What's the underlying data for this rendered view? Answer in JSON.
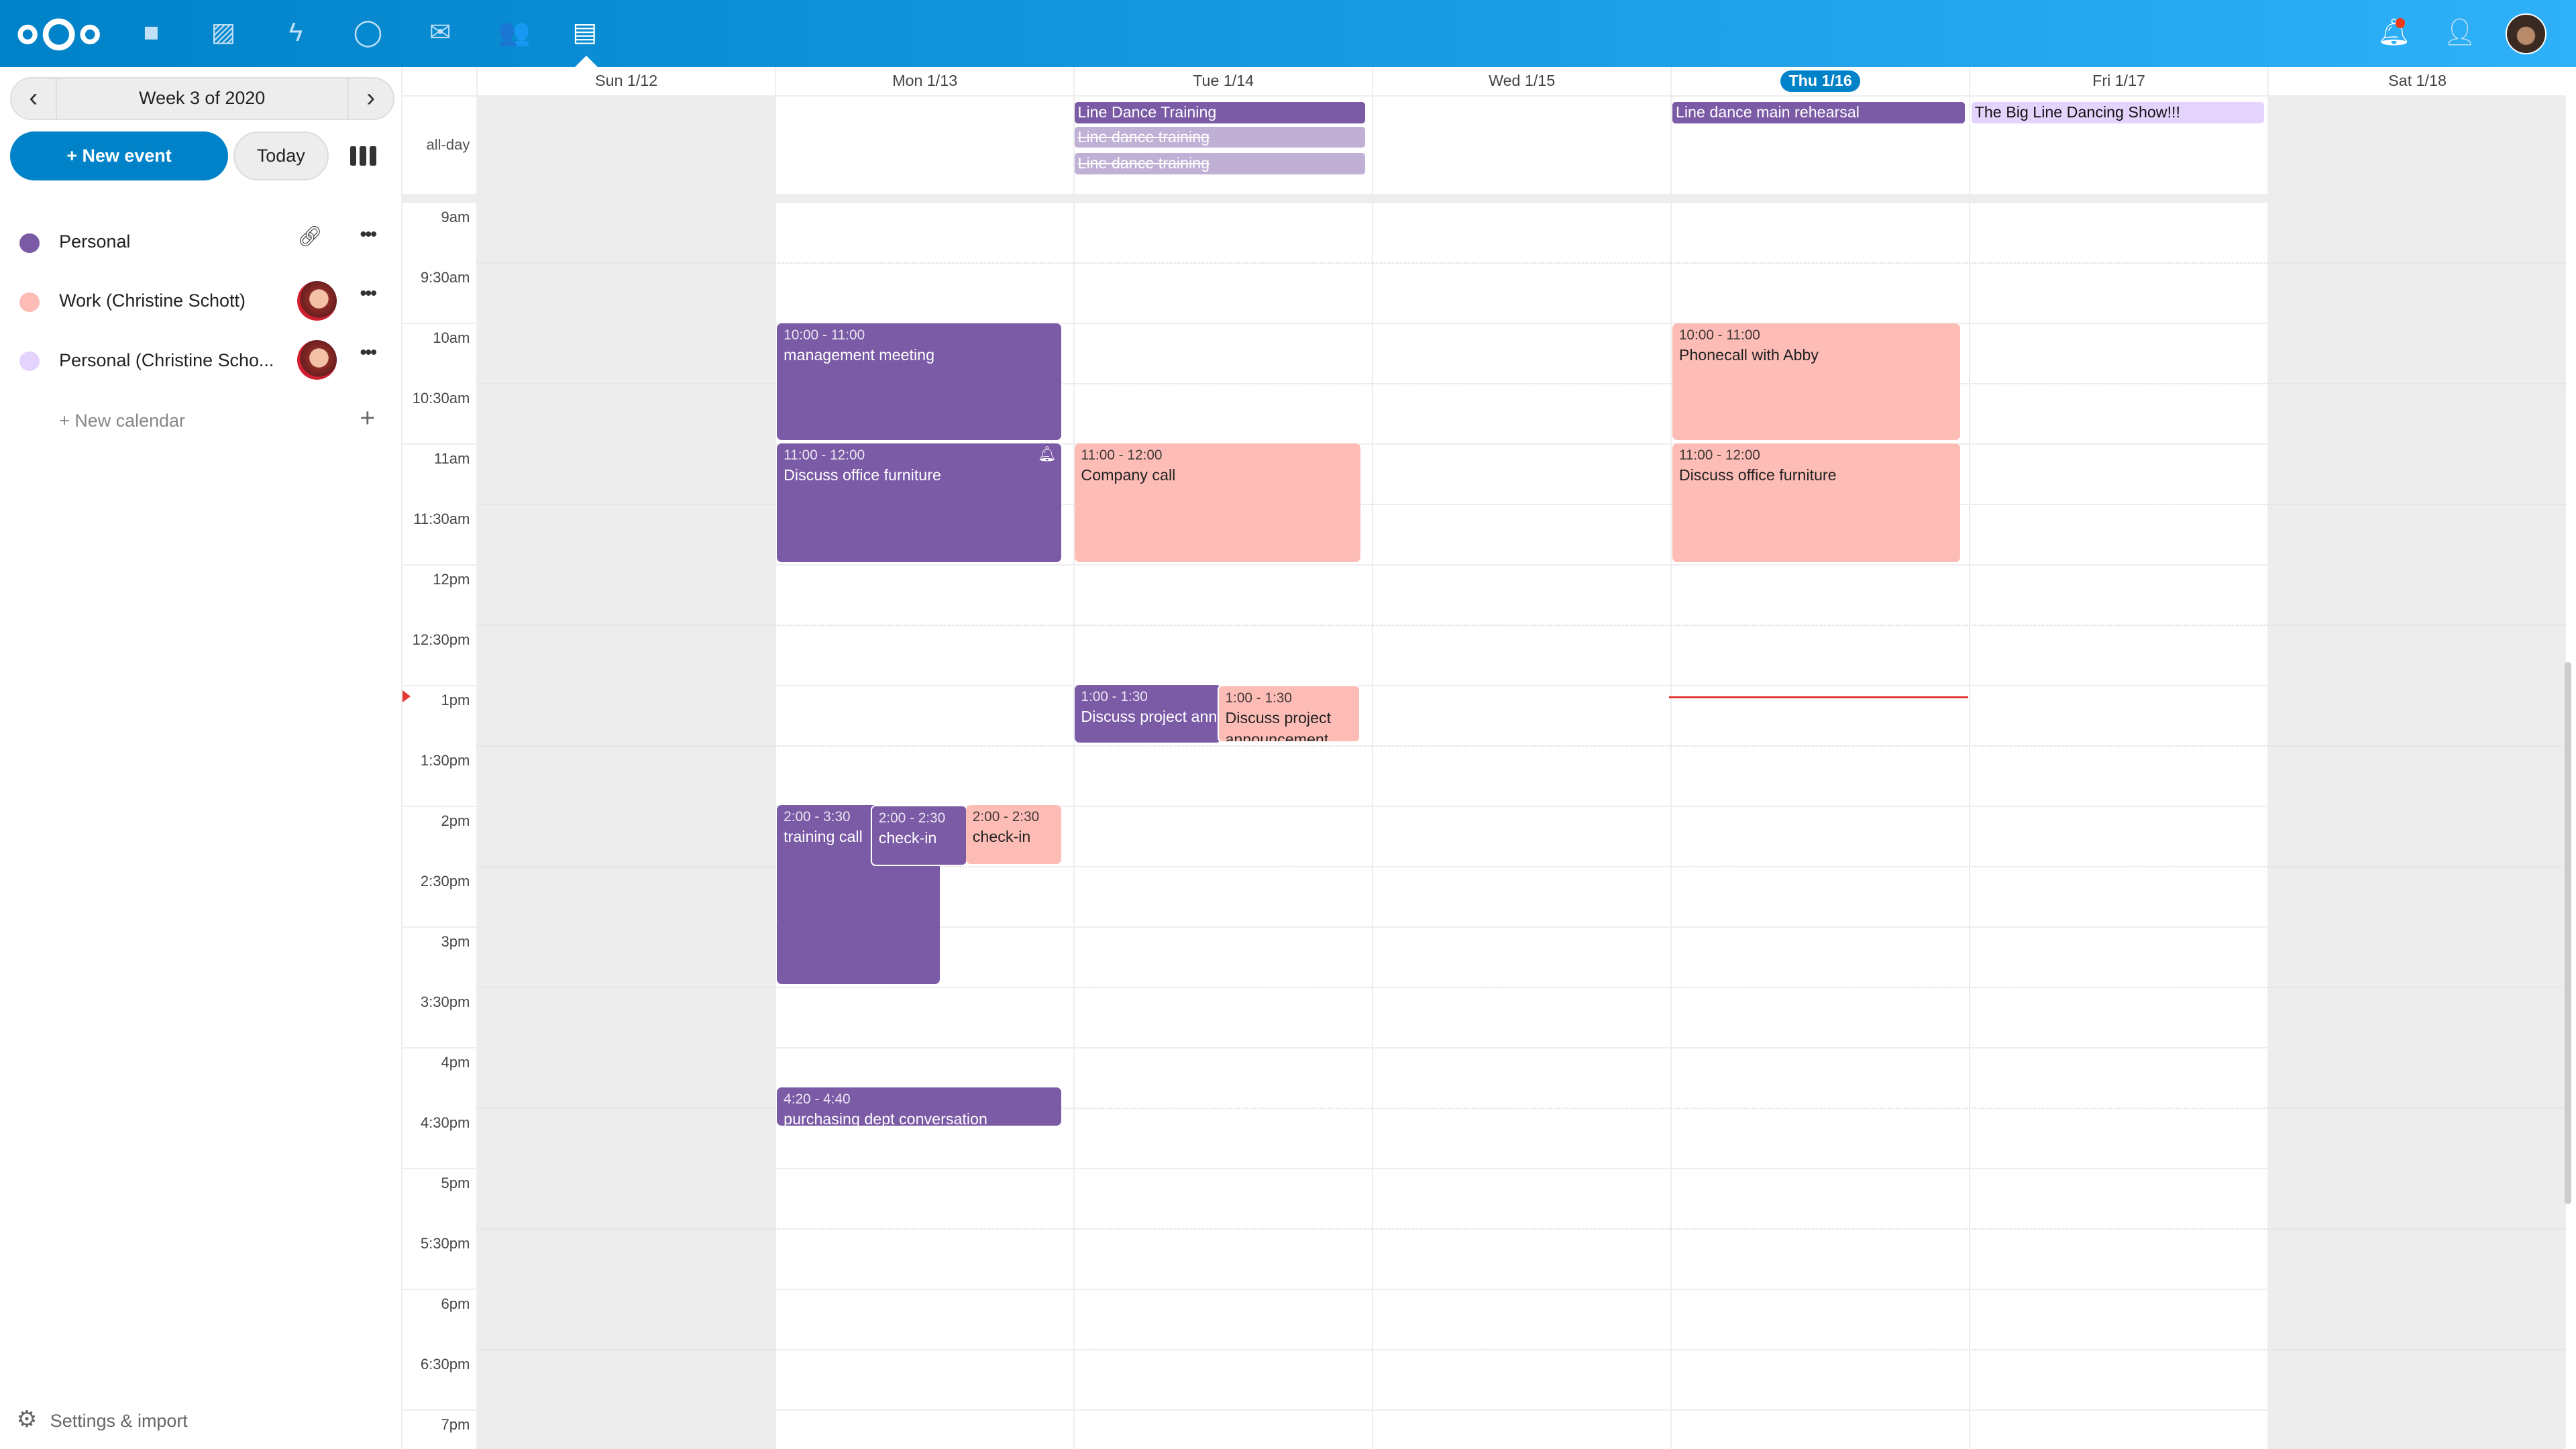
{
  "header": {
    "apps": [
      "logo-icon",
      "files-icon",
      "photos-icon",
      "activity-icon",
      "talk-icon",
      "mail-icon",
      "contacts-icon",
      "calendar-icon"
    ],
    "right": [
      "notifications-icon",
      "contacts-menu-icon",
      "user-avatar"
    ]
  },
  "sidebar": {
    "week_label": "Week 3 of 2020",
    "new_event": "+ New event",
    "today": "Today",
    "calendars": [
      {
        "name": "Personal",
        "color": "#7b5aa6"
      },
      {
        "name": "Work (Christine Schott)",
        "color": "#fdbdb6"
      },
      {
        "name": "Personal (Christine Scho...",
        "color": "#e4d4fd"
      }
    ],
    "new_calendar": "+ New calendar",
    "settings": "Settings & import"
  },
  "grid": {
    "days": [
      "Sun 1/12",
      "Mon 1/13",
      "Tue 1/14",
      "Wed 1/15",
      "Thu 1/16",
      "Fri 1/17",
      "Sat 1/18"
    ],
    "today_index": 4,
    "allday_label": "all-day",
    "times": [
      "9am",
      "9:30am",
      "10am",
      "10:30am",
      "11am",
      "11:30am",
      "12pm",
      "12:30pm",
      "1pm",
      "1:30pm",
      "2pm",
      "2:30pm",
      "3pm",
      "3:30pm",
      "4pm",
      "4:30pm",
      "5pm",
      "5:30pm",
      "6pm",
      "6:30pm",
      "7pm"
    ]
  },
  "allday": [
    {
      "title": "Line Dance Training",
      "day": "Tue 1/14"
    },
    {
      "title": "Line dance training",
      "day": "Tue 1/14",
      "cancelled": true
    },
    {
      "title": "Line dance training",
      "day": "Tue 1/14",
      "cancelled": true
    },
    {
      "title": "Line dance main rehearsal",
      "day": "Thu 1/16"
    },
    {
      "title": "The Big Line Dancing Show!!!",
      "day": "Fri 1/17"
    }
  ],
  "events": [
    {
      "time": "10:00 - 11:00",
      "title": "management meeting",
      "day": "Mon 1/13"
    },
    {
      "time": "11:00 - 12:00",
      "title": "Discuss office furniture",
      "day": "Mon 1/13",
      "reminder": true
    },
    {
      "time": "2:00 - 3:30",
      "title": "training call",
      "day": "Mon 1/13"
    },
    {
      "time": "2:00 - 2:30",
      "title": "check-in",
      "day": "Mon 1/13"
    },
    {
      "time": "2:00 - 2:30",
      "title": "check-in",
      "day": "Mon 1/13"
    },
    {
      "time": "4:20 - 4:40",
      "title": "purchasing dept conversation",
      "day": "Mon 1/13"
    },
    {
      "time": "11:00 - 12:00",
      "title": "Company call",
      "day": "Tue 1/14"
    },
    {
      "time": "1:00 - 1:30",
      "title": "Discuss project announcement",
      "day": "Tue 1/14"
    },
    {
      "time": "1:00 - 1:30",
      "title": "Discuss project announcement",
      "day": "Tue 1/14"
    },
    {
      "time": "10:00 - 11:00",
      "title": "Phonecall with Abby",
      "day": "Thu 1/16"
    },
    {
      "time": "11:00 - 12:00",
      "title": "Discuss office furniture",
      "day": "Thu 1/16"
    }
  ],
  "colors": {
    "header": "#0082c9",
    "personal": "#7b5aa6",
    "work": "#fdbdb6",
    "personal_cs": "#e4d4fd",
    "now_line": "#e53935"
  }
}
